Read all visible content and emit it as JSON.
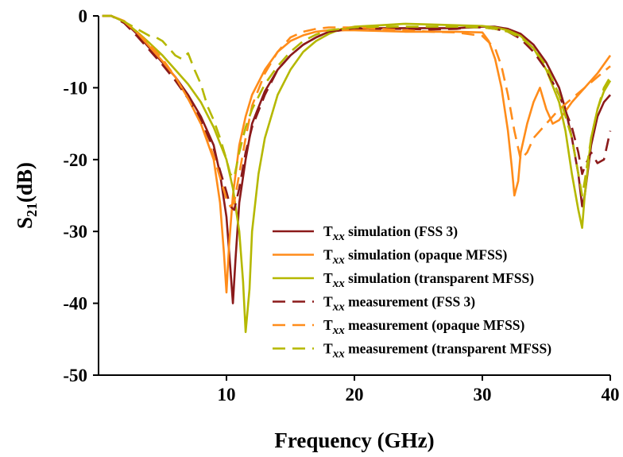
{
  "chart_data": {
    "type": "line",
    "xlabel": "Frequency (GHz)",
    "ylabel": {
      "base": "S",
      "sub": "21",
      "rest": "(dB)"
    },
    "xlim": [
      0,
      40
    ],
    "ylim": [
      -50,
      0
    ],
    "xticks": [
      10,
      20,
      30,
      40
    ],
    "yticks": [
      0,
      -10,
      -20,
      -30,
      -40,
      -50
    ],
    "grid": false,
    "legend": "lower-right",
    "series": [
      {
        "name": {
          "prefix": "T",
          "sub": "xx",
          "rest": " simulation (FSS 3)"
        },
        "color": "#8b1a1a",
        "dash": "solid",
        "x": [
          0.3,
          1,
          2,
          3,
          4,
          5,
          6,
          7,
          8,
          9,
          9.5,
          10,
          10.3,
          10.5,
          10.7,
          11,
          11.5,
          12,
          13,
          14,
          15,
          16,
          17,
          18,
          20,
          22,
          24,
          26,
          28,
          30,
          31,
          32,
          33,
          34,
          35,
          36,
          36.5,
          37,
          37.5,
          37.8,
          38,
          38.5,
          39,
          39.5,
          40
        ],
        "y": [
          0,
          0,
          -0.8,
          -2.5,
          -4.5,
          -6.5,
          -8.5,
          -11,
          -14,
          -18,
          -22,
          -28,
          -35,
          -40,
          -34,
          -26,
          -20,
          -15,
          -10.5,
          -7.5,
          -5.5,
          -4,
          -3,
          -2.2,
          -1.8,
          -1.7,
          -1.7,
          -1.7,
          -1.7,
          -1.5,
          -1.5,
          -1.8,
          -2.5,
          -4,
          -6.5,
          -10,
          -13,
          -17,
          -22,
          -26.5,
          -25,
          -18,
          -14,
          -12,
          -11
        ]
      },
      {
        "name": {
          "prefix": "T",
          "sub": "xx",
          "rest": " simulation (opaque MFSS)"
        },
        "color": "#ff8c1a",
        "dash": "solid",
        "x": [
          0.3,
          1,
          2,
          3,
          4,
          5,
          6,
          7,
          8,
          9,
          9.5,
          9.8,
          10,
          10.2,
          10.5,
          11,
          11.5,
          12,
          13,
          14,
          15,
          16,
          17,
          18,
          20,
          22,
          24,
          26,
          28,
          30,
          30.5,
          31,
          31.5,
          32,
          32.3,
          32.5,
          32.8,
          33,
          33.5,
          34,
          34.5,
          35,
          35.5,
          36,
          37,
          38,
          39,
          40
        ],
        "y": [
          0,
          0,
          -0.7,
          -2.3,
          -4.3,
          -6.3,
          -8.5,
          -11.5,
          -15,
          -20,
          -26,
          -33,
          -38.5,
          -32,
          -25,
          -18,
          -14,
          -11,
          -7.5,
          -5,
          -3.5,
          -2.7,
          -2.2,
          -2,
          -2,
          -2.1,
          -2.2,
          -2.2,
          -2.2,
          -2.3,
          -3.5,
          -6,
          -10,
          -16,
          -21,
          -25,
          -23,
          -19,
          -15,
          -12,
          -10,
          -13,
          -15,
          -14.5,
          -12,
          -10,
          -8,
          -5.5
        ]
      },
      {
        "name": {
          "prefix": "T",
          "sub": "xx",
          "rest": " simulation (transparent MFSS)"
        },
        "color": "#b5b800",
        "dash": "solid",
        "x": [
          0.3,
          1,
          2,
          3,
          4,
          5,
          6,
          7,
          8,
          9,
          10,
          10.5,
          11,
          11.3,
          11.5,
          11.8,
          12,
          12.5,
          13,
          14,
          15,
          16,
          17,
          18,
          19,
          20,
          22,
          24,
          26,
          28,
          30,
          31,
          32,
          33,
          34,
          35,
          36,
          36.5,
          37,
          37.5,
          37.8,
          38,
          38.5,
          39,
          39.5,
          40
        ],
        "y": [
          0,
          0,
          -0.8,
          -2.2,
          -3.8,
          -5.5,
          -7.5,
          -9.5,
          -12,
          -15.5,
          -20,
          -24,
          -30,
          -37,
          -44,
          -38,
          -30,
          -22,
          -17,
          -11,
          -7.5,
          -5,
          -3.5,
          -2.5,
          -1.8,
          -1.5,
          -1.3,
          -1.1,
          -1.2,
          -1.3,
          -1.4,
          -1.6,
          -2,
          -2.8,
          -4.5,
          -7.5,
          -12,
          -16,
          -22,
          -27,
          -29.5,
          -25,
          -17,
          -13,
          -10.5,
          -9
        ]
      },
      {
        "name": {
          "prefix": "T",
          "sub": "xx",
          "rest": " measurement (FSS 3)"
        },
        "color": "#8b1a1a",
        "dash": "dashed",
        "x": [
          0.3,
          1,
          2,
          3,
          4,
          5,
          6,
          7,
          8,
          9,
          9.5,
          10,
          10.3,
          10.6,
          11,
          11.5,
          12,
          13,
          14,
          15,
          16,
          17,
          18,
          20,
          22,
          24,
          26,
          28,
          29,
          30,
          31,
          32,
          33,
          34,
          35,
          36,
          37,
          37.5,
          37.8,
          38,
          38.5,
          39,
          39.5,
          40
        ],
        "y": [
          0,
          0,
          -1,
          -2.8,
          -4.8,
          -6.8,
          -9,
          -11.5,
          -14.5,
          -18.5,
          -21.5,
          -24.5,
          -26.5,
          -27,
          -24,
          -19,
          -15.5,
          -11,
          -7.5,
          -5.5,
          -4,
          -3,
          -2.2,
          -1.7,
          -1.8,
          -1.8,
          -1.9,
          -1.8,
          -1.6,
          -1.6,
          -1.8,
          -2.2,
          -3.2,
          -5,
          -7.5,
          -11,
          -15.5,
          -19,
          -22,
          -21,
          -19,
          -20.5,
          -20,
          -16
        ]
      },
      {
        "name": {
          "prefix": "T",
          "sub": "xx",
          "rest": " measurement (opaque MFSS)"
        },
        "color": "#ff8c1a",
        "dash": "dashed",
        "x": [
          0.3,
          1,
          2,
          3,
          4,
          5,
          6,
          7,
          8,
          9,
          9.5,
          10,
          10.3,
          10.6,
          11,
          11.5,
          12,
          13,
          14,
          15,
          16,
          17,
          18,
          20,
          22,
          24,
          26,
          28,
          30,
          31,
          31.5,
          32,
          32.5,
          33,
          33.5,
          34,
          35,
          36,
          37,
          38,
          39,
          40
        ],
        "y": [
          0,
          0,
          -0.8,
          -2.3,
          -4,
          -6,
          -8.5,
          -11.5,
          -15,
          -19.5,
          -22.5,
          -25.5,
          -26.5,
          -26,
          -22,
          -17,
          -12.5,
          -8,
          -5,
          -3,
          -2.2,
          -1.8,
          -1.6,
          -1.6,
          -1.8,
          -2,
          -2.2,
          -2.3,
          -2.8,
          -4.5,
          -7,
          -11,
          -16,
          -20,
          -19,
          -17,
          -15,
          -13,
          -11.5,
          -10,
          -8.5,
          -7
        ]
      },
      {
        "name": {
          "prefix": "T",
          "sub": "xx",
          "rest": " measurement (transparent MFSS)"
        },
        "color": "#b5b800",
        "dash": "dashed",
        "x": [
          0.3,
          1,
          2,
          3,
          4,
          4.5,
          5,
          5.5,
          6,
          6.5,
          7,
          7.5,
          8,
          8.5,
          9,
          9.5,
          10,
          10.3,
          10.6,
          11,
          11.5,
          12,
          13,
          14,
          15,
          16,
          17,
          18,
          20,
          22,
          24,
          26,
          28,
          30,
          31,
          32,
          33,
          34,
          35,
          36,
          37,
          37.5,
          37.8,
          38,
          38.5,
          39,
          39.5,
          40
        ],
        "y": [
          0,
          0,
          -0.8,
          -1.8,
          -2.8,
          -3,
          -3.5,
          -4.5,
          -5.5,
          -6,
          -5.2,
          -7.5,
          -9.5,
          -12.5,
          -14.5,
          -17,
          -20,
          -22,
          -22.5,
          -19,
          -15.5,
          -13,
          -9.5,
          -7,
          -5,
          -3.5,
          -2.6,
          -2,
          -1.6,
          -1.5,
          -1.5,
          -1.5,
          -1.5,
          -1.6,
          -1.8,
          -2.2,
          -3,
          -4.5,
          -7,
          -11,
          -17,
          -22,
          -25,
          -23,
          -17,
          -13,
          -10,
          -8.5
        ]
      }
    ]
  }
}
